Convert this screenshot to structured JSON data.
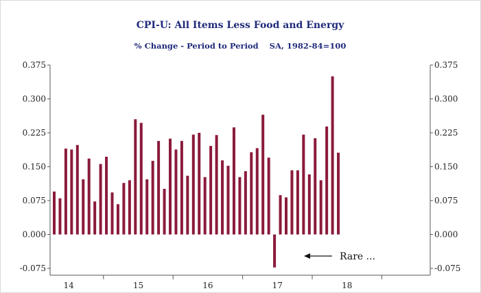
{
  "chart_data": {
    "type": "bar",
    "title": "CPI-U: All Items Less Food and Energy",
    "subtitle": "% Change - Period to Period    SA, 1982-84=100",
    "ylim": [
      -0.075,
      0.375
    ],
    "yticks": [
      "0.375",
      "0.300",
      "0.225",
      "0.150",
      "0.075",
      "0.000",
      "-0.075"
    ],
    "ytick_values": [
      0.375,
      0.3,
      0.225,
      0.15,
      0.075,
      0.0,
      -0.075
    ],
    "year_labels": [
      "14",
      "15",
      "16",
      "17",
      "18"
    ],
    "values": [
      0.095,
      0.08,
      0.19,
      0.188,
      0.198,
      0.122,
      0.168,
      0.073,
      0.156,
      0.172,
      0.093,
      0.067,
      0.114,
      0.12,
      0.255,
      0.247,
      0.122,
      0.163,
      0.207,
      0.101,
      0.212,
      0.188,
      0.207,
      0.13,
      0.221,
      0.225,
      0.127,
      0.196,
      0.22,
      0.164,
      0.152,
      0.237,
      0.127,
      0.14,
      0.182,
      0.191,
      0.265,
      0.17,
      -0.073,
      0.087,
      0.082,
      0.142,
      0.142,
      0.221,
      0.133,
      0.213,
      0.12,
      0.239,
      0.35,
      0.181
    ],
    "annotation": "Rare ...",
    "bar_color": "#8b1a3a",
    "grid": false
  }
}
